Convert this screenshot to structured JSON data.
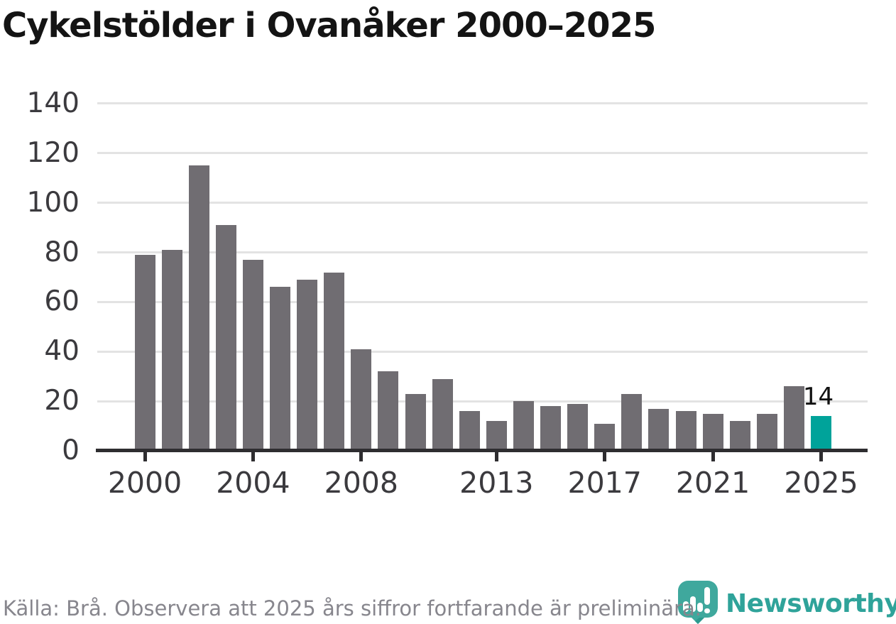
{
  "title": "Cykelstölder i Ovanåker 2000–2025",
  "source_note": "Källa: Brå. Observera att 2025 års siffror fortfarande är preliminära.",
  "branding": {
    "name": "Newsworthy",
    "logo_icon": "speech-bubble-bar-chart-icon"
  },
  "colors": {
    "bar": "#706d72",
    "highlight": "#00a39a",
    "grid": "#e3e3e3",
    "axis": "#2e2d30",
    "tick_text": "#3b3a3e",
    "title_text": "#141414",
    "source_text": "#87868d",
    "brand_teal": "#2fa39a",
    "logo_fill": "#3fa89d",
    "logo_tail": "#2c9a8f"
  },
  "chart_data": {
    "type": "bar",
    "title": "Cykelstölder i Ovanåker 2000–2025",
    "xlabel": "",
    "ylabel": "",
    "categories": [
      2000,
      2001,
      2002,
      2003,
      2004,
      2005,
      2006,
      2007,
      2008,
      2009,
      2010,
      2011,
      2012,
      2013,
      2014,
      2015,
      2016,
      2017,
      2018,
      2019,
      2020,
      2021,
      2022,
      2023,
      2024,
      2025
    ],
    "values": [
      79,
      81,
      115,
      91,
      77,
      66,
      69,
      72,
      41,
      32,
      23,
      29,
      16,
      12,
      20,
      18,
      19,
      11,
      23,
      17,
      16,
      15,
      12,
      15,
      26,
      14
    ],
    "highlight_year": 2025,
    "highlight_value_label": "14",
    "x_tick_labels": [
      "2000",
      "2004",
      "2008",
      "2013",
      "2017",
      "2021",
      "2025"
    ],
    "y_ticks": [
      0,
      20,
      40,
      60,
      80,
      100,
      120,
      140
    ],
    "ylim": [
      0,
      145
    ],
    "grid": "horizontal-only",
    "legend": "none"
  }
}
